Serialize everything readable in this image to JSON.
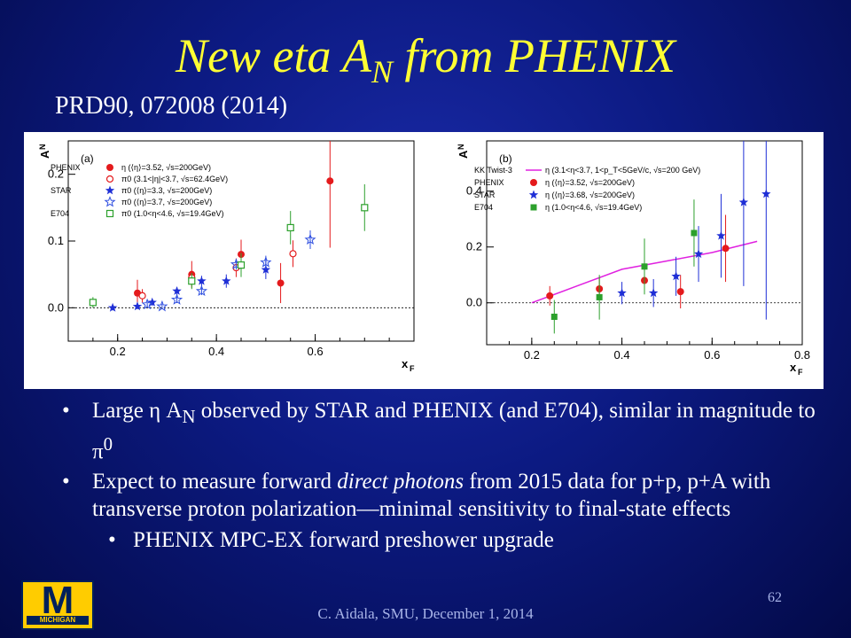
{
  "slide": {
    "title_main": "New eta A",
    "title_sub": "N",
    "title_rest": " from PHENIX",
    "reference": "PRD90, 072008 (2014)",
    "footer": "C. Aidala, SMU, December 1, 2014",
    "page_number": "62",
    "logo": {
      "letter": "M",
      "text": "MICHIGAN"
    },
    "bullets": [
      {
        "parts": [
          "Large η A",
          "N",
          " observed by STAR and PHENIX (and E704), similar in magnitude to π",
          "0"
        ]
      },
      {
        "parts": [
          "Expect to measure forward ",
          "direct photons",
          " from 2015 data for p+p, p+A with transverse proton polarization—minimal sensitivity to final-state effects"
        ]
      }
    ],
    "sub_bullet": "PHENIX MPC-EX forward preshower upgrade",
    "bullet_glyph": "•"
  },
  "chart_data": [
    {
      "type": "scatter",
      "panel_label": "(a)",
      "ylabel": "A_N",
      "xlabel": "x_F",
      "xlim": [
        0.1,
        0.8
      ],
      "ylim": [
        -0.05,
        0.25
      ],
      "xticks": [
        "0.2",
        "0.4",
        "0.6"
      ],
      "yticks": [
        "0.0",
        "0.1",
        "0.2"
      ],
      "legend_headers": [
        "PHENIX",
        "STAR",
        "E704"
      ],
      "series": [
        {
          "name": "η (⟨η⟩=3.52, √s=200GeV)",
          "marker": "circle-filled",
          "color": "#e41a1c",
          "x": [
            0.24,
            0.35,
            0.45,
            0.53,
            0.63
          ],
          "y": [
            0.022,
            0.05,
            0.08,
            0.037,
            0.19
          ],
          "err": [
            0.02,
            0.02,
            0.022,
            0.03,
            0.1
          ]
        },
        {
          "name": "π0 (3.1<|η|<3.7, √s=62.4GeV)",
          "marker": "circle-open",
          "color": "#e41a1c",
          "x": [
            0.25,
            0.35,
            0.44,
            0.555
          ],
          "y": [
            0.018,
            0.045,
            0.06,
            0.081
          ],
          "err": [
            0.01,
            0.01,
            0.014,
            0.02
          ]
        },
        {
          "name": "π0 (⟨η⟩=3.3, √s=200GeV)",
          "marker": "star-filled",
          "color": "#1f2fd6",
          "x": [
            0.19,
            0.24,
            0.27,
            0.32,
            0.37,
            0.42,
            0.5
          ],
          "y": [
            0.0,
            0.002,
            0.008,
            0.025,
            0.04,
            0.04,
            0.057
          ],
          "err": [
            0.004,
            0.004,
            0.005,
            0.006,
            0.008,
            0.01,
            0.014
          ]
        },
        {
          "name": "π0 (⟨η⟩=3.7, √s=200GeV)",
          "marker": "star-open",
          "color": "#3050e0",
          "x": [
            0.26,
            0.29,
            0.32,
            0.37,
            0.44,
            0.5,
            0.59
          ],
          "y": [
            0.005,
            0.002,
            0.012,
            0.025,
            0.065,
            0.068,
            0.102
          ],
          "err": [
            0.004,
            0.004,
            0.005,
            0.006,
            0.008,
            0.01,
            0.014
          ]
        },
        {
          "name": "π0 (1.0<η<4.6, √s=19.4GeV)",
          "marker": "square-open",
          "color": "#2ca02c",
          "x": [
            0.15,
            0.35,
            0.45,
            0.55,
            0.7
          ],
          "y": [
            0.008,
            0.04,
            0.064,
            0.12,
            0.15
          ],
          "err": [
            0.008,
            0.012,
            0.018,
            0.025,
            0.035
          ]
        }
      ]
    },
    {
      "type": "line",
      "panel_label": "(b)",
      "ylabel": "A_N",
      "xlabel": "x_F",
      "xlim": [
        0.1,
        0.8
      ],
      "ylim": [
        -0.15,
        0.58
      ],
      "xticks": [
        "0.2",
        "0.4",
        "0.6",
        "0.8"
      ],
      "yticks": [
        "0.0",
        "0.2",
        "0.4"
      ],
      "curve": {
        "name": "KK Twist-3",
        "label": "η (3.1<η<3.7, 1<p_T<5GeV/c, √s=200 GeV)",
        "color": "#e020e0",
        "x": [
          0.2,
          0.3,
          0.4,
          0.5,
          0.6,
          0.7
        ],
        "y": [
          0.0,
          0.06,
          0.12,
          0.15,
          0.18,
          0.22
        ]
      },
      "legend_headers": [
        "PHENIX",
        "STAR",
        "E704"
      ],
      "series": [
        {
          "name": "η (⟨η⟩=3.52, √s=200GeV)",
          "marker": "circle-filled",
          "color": "#e41a1c",
          "x": [
            0.24,
            0.35,
            0.45,
            0.53,
            0.63
          ],
          "y": [
            0.025,
            0.05,
            0.08,
            0.04,
            0.195
          ],
          "err": [
            0.035,
            0.04,
            0.045,
            0.06,
            0.12
          ]
        },
        {
          "name": "η (⟨η⟩=3.68, √s=200GeV)",
          "marker": "star-filled",
          "color": "#1f2fd6",
          "x": [
            0.4,
            0.47,
            0.52,
            0.57,
            0.62,
            0.67,
            0.72
          ],
          "y": [
            0.035,
            0.035,
            0.095,
            0.175,
            0.24,
            0.36,
            0.39
          ],
          "err": [
            0.04,
            0.05,
            0.07,
            0.1,
            0.15,
            0.3,
            0.45
          ]
        },
        {
          "name": "η (1.0<η<4.6, √s=19.4GeV)",
          "marker": "square-filled",
          "color": "#2ca02c",
          "x": [
            0.25,
            0.35,
            0.45,
            0.56
          ],
          "y": [
            -0.05,
            0.02,
            0.13,
            0.25
          ],
          "err": [
            0.06,
            0.08,
            0.1,
            0.12
          ]
        }
      ]
    }
  ]
}
